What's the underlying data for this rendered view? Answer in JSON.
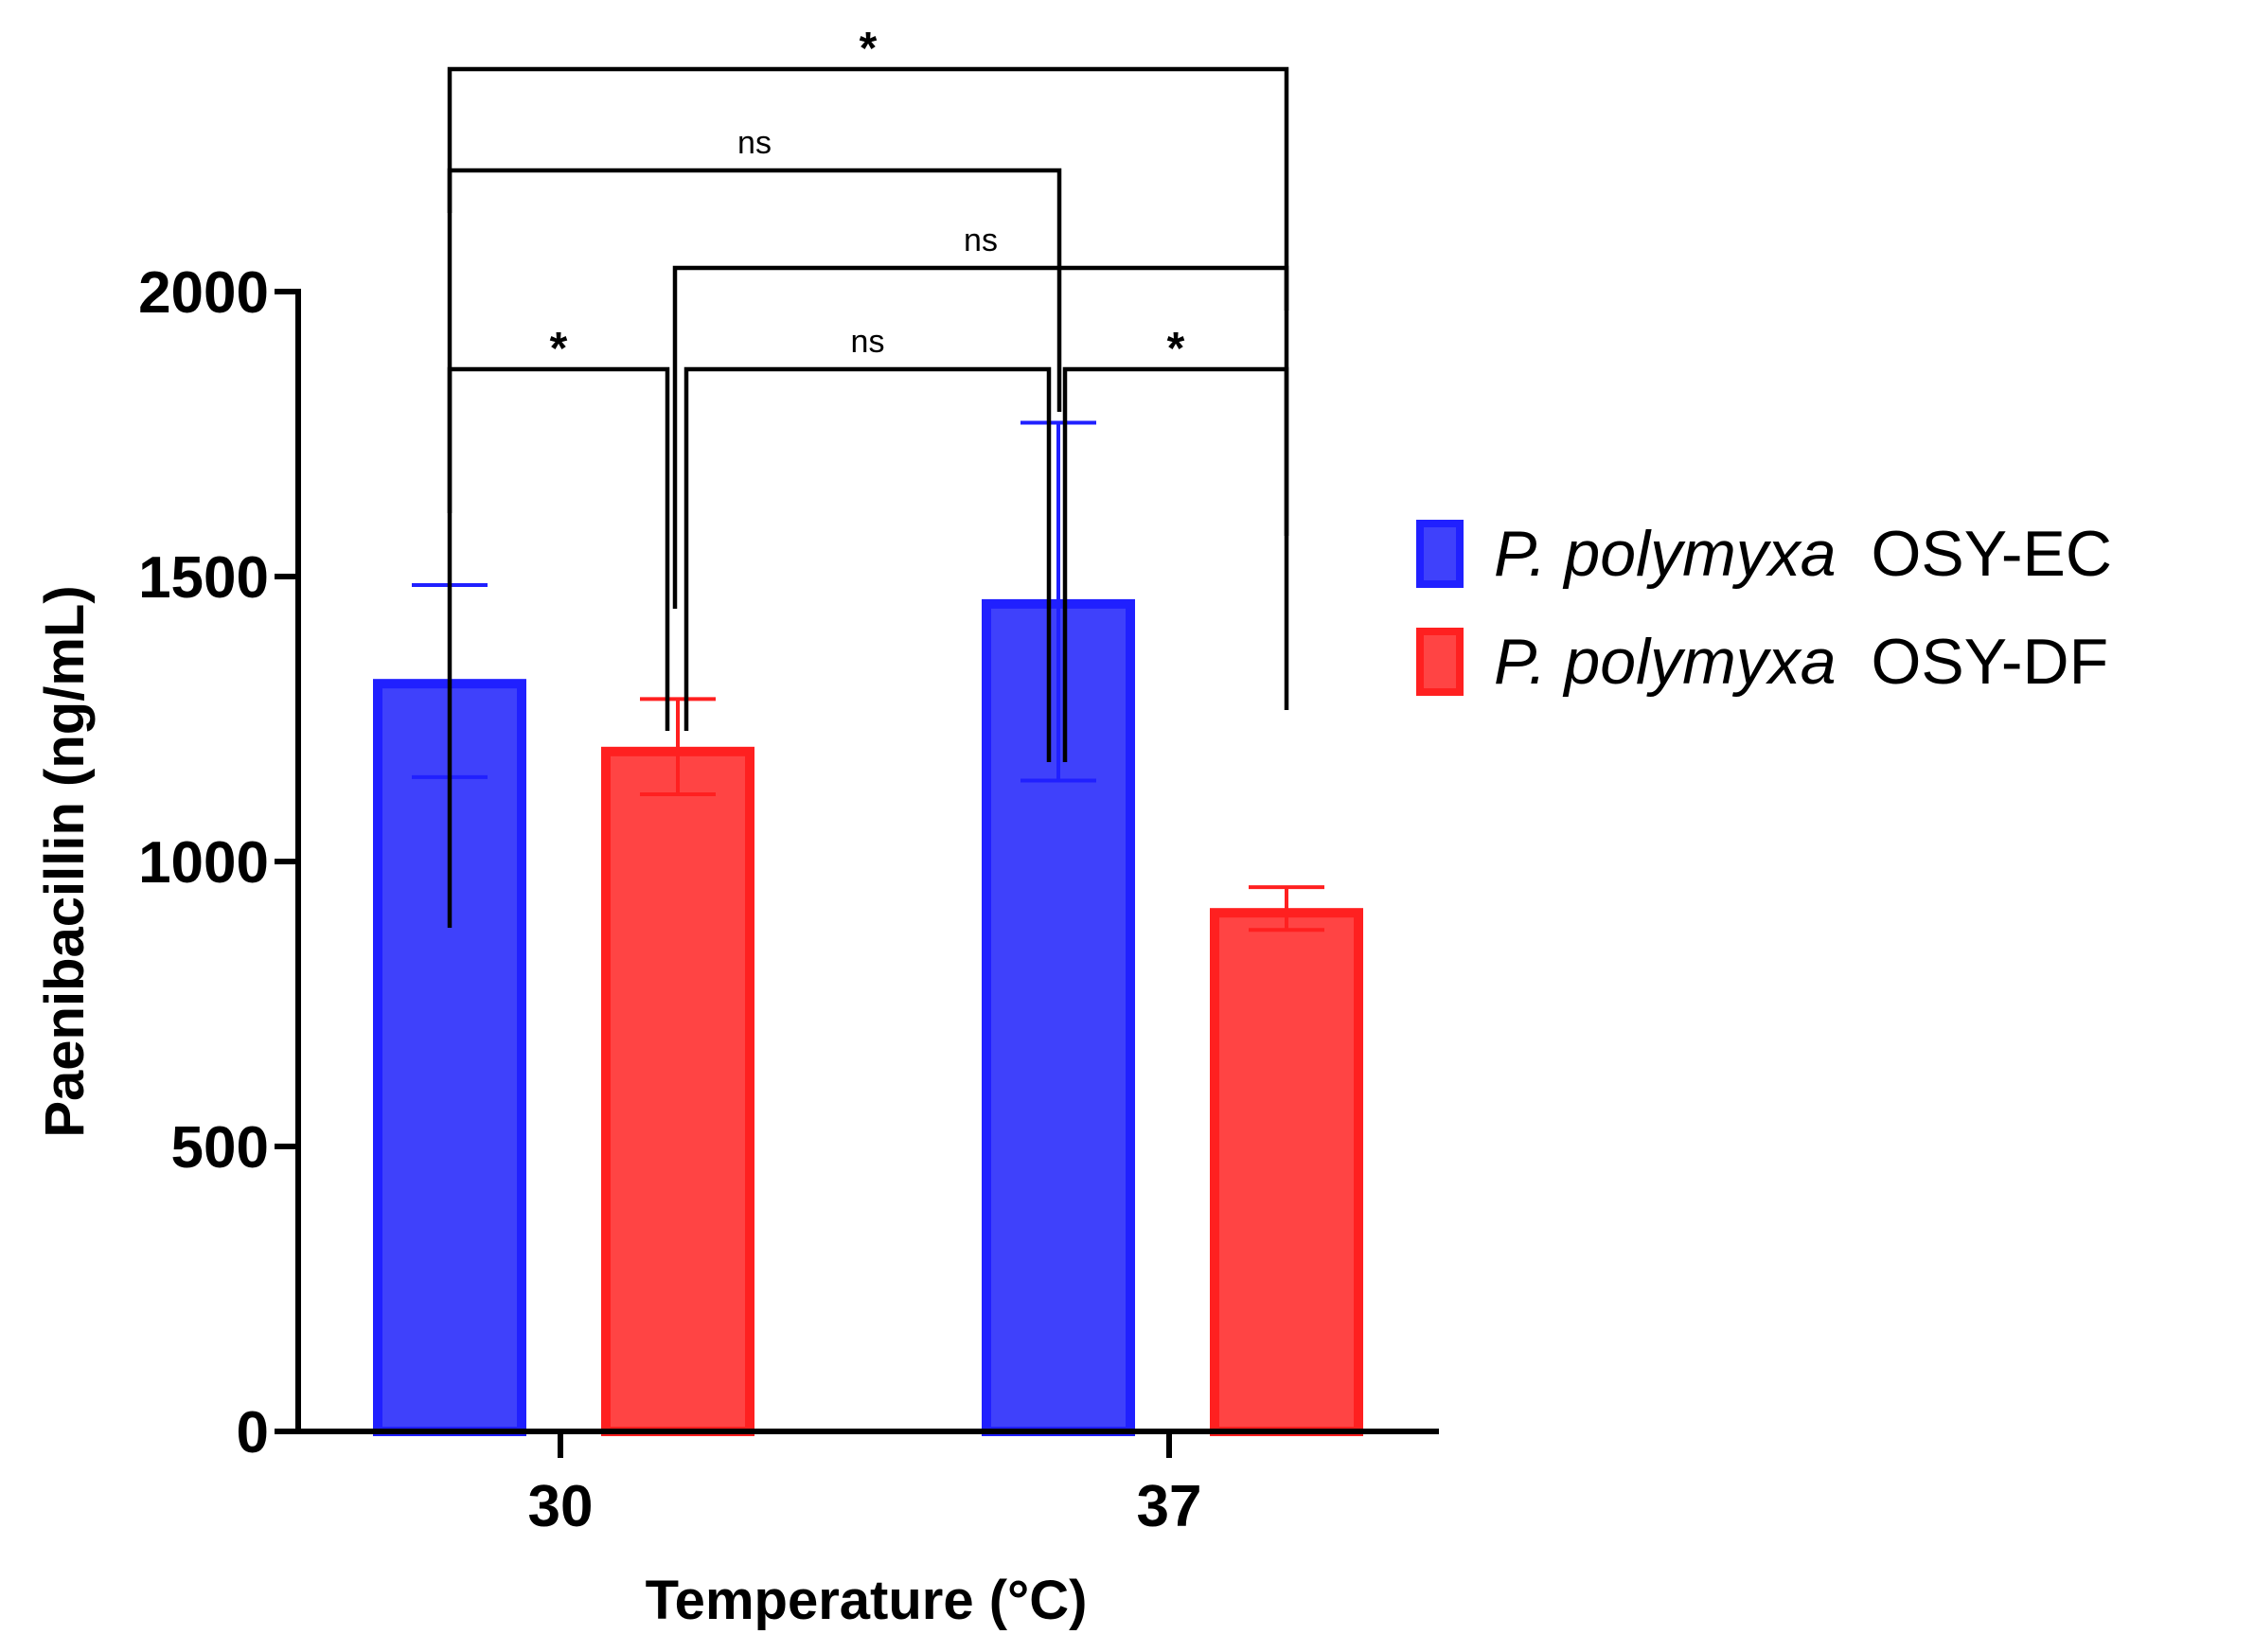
{
  "chart_data": {
    "type": "bar",
    "title": "",
    "xlabel": "Temperature (°C)",
    "ylabel": "Paenibacillin (ng/mL)",
    "categories": [
      "30",
      "37"
    ],
    "ylim": [
      0,
      2000
    ],
    "yticks": [
      0,
      500,
      1000,
      1500,
      2000
    ],
    "grid": false,
    "legend_position": "right",
    "series": [
      {
        "name": "P. polymyxa OSY-EC",
        "name_italic": "P. polymyxa",
        "name_plain": "OSY-EC",
        "color": "#3f41fb",
        "edge": "#2020ff",
        "values": [
          1312,
          1452
        ],
        "error_upper": [
          1485,
          1770
        ],
        "error_lower": [
          1148,
          1142
        ]
      },
      {
        "name": "P. polymyxa OSY-DF",
        "name_italic": "P. polymyxa",
        "name_plain": "OSY-DF",
        "color": "#ff4444",
        "edge": "#ff2020",
        "values": [
          1193,
          910
        ],
        "error_upper": [
          1285,
          955
        ],
        "error_lower": [
          1118,
          880
        ]
      }
    ],
    "significance": [
      {
        "from": "OSY-EC 30",
        "to": "OSY-DF 30",
        "label": "*"
      },
      {
        "from": "OSY-DF 30",
        "to": "OSY-EC 37",
        "label": "ns"
      },
      {
        "from": "OSY-EC 37",
        "to": "OSY-DF 37",
        "label": "*"
      },
      {
        "from": "OSY-DF 30",
        "to": "OSY-DF 37",
        "label": "ns"
      },
      {
        "from": "OSY-EC 30",
        "to": "OSY-EC 37",
        "label": "ns"
      },
      {
        "from": "OSY-EC 30",
        "to": "OSY-DF 37",
        "label": "*"
      }
    ]
  }
}
